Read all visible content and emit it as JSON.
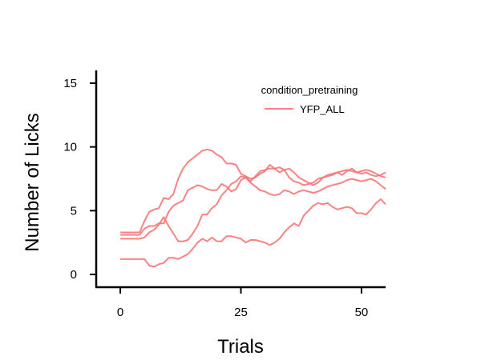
{
  "chart_data": {
    "type": "line",
    "xlabel": "Trials",
    "ylabel": "Number of Licks",
    "xlim": [
      -5,
      55
    ],
    "ylim": [
      -1,
      16
    ],
    "x_ticks": [
      0,
      25,
      50
    ],
    "x_tick_labels": [
      "0",
      "25",
      "50"
    ],
    "y_ticks": [
      0,
      5,
      10,
      15
    ],
    "y_tick_labels": [
      "0",
      "5",
      "10",
      "15"
    ],
    "grid": false,
    "legend": {
      "title": "condition_pretraining",
      "placement": "top-right",
      "entries": [
        "YFP_ALL"
      ]
    },
    "color": "#f87676",
    "series": [
      {
        "name": "YFP_ALL",
        "points": [
          [
            0,
            2.8
          ],
          [
            1,
            2.8
          ],
          [
            2,
            2.8
          ],
          [
            3,
            2.8
          ],
          [
            4,
            2.8
          ],
          [
            5,
            2.9
          ],
          [
            6,
            3.3
          ],
          [
            7,
            3.5
          ],
          [
            8,
            3.9
          ],
          [
            9,
            4.5
          ],
          [
            10,
            3.8
          ],
          [
            11,
            3.2
          ],
          [
            12,
            2.6
          ],
          [
            13,
            2.6
          ],
          [
            14,
            2.7
          ],
          [
            15,
            3.2
          ],
          [
            16,
            3.8
          ],
          [
            17,
            4.7
          ],
          [
            18,
            4.7
          ],
          [
            19,
            5.2
          ],
          [
            20,
            5.5
          ],
          [
            21,
            6.2
          ],
          [
            22,
            6.6
          ],
          [
            23,
            7.1
          ],
          [
            24,
            7.3
          ],
          [
            25,
            7.7
          ],
          [
            26,
            7.6
          ],
          [
            27,
            7.3
          ],
          [
            28,
            7.7
          ],
          [
            29,
            8.1
          ],
          [
            30,
            8.2
          ],
          [
            31,
            8.3
          ],
          [
            32,
            8.3
          ],
          [
            33,
            8.4
          ],
          [
            34,
            8.2
          ],
          [
            35,
            7.6
          ],
          [
            36,
            7.3
          ],
          [
            37,
            7.2
          ],
          [
            38,
            7.0
          ],
          [
            39,
            7.1
          ],
          [
            40,
            7.2
          ],
          [
            41,
            7.5
          ],
          [
            42,
            7.6
          ],
          [
            43,
            7.8
          ],
          [
            44,
            7.9
          ],
          [
            45,
            8.0
          ],
          [
            46,
            8.1
          ],
          [
            47,
            8.2
          ],
          [
            48,
            8.1
          ],
          [
            49,
            8.0
          ],
          [
            50,
            8.1
          ],
          [
            51,
            8.2
          ],
          [
            52,
            8.1
          ],
          [
            53,
            7.9
          ],
          [
            54,
            7.7
          ],
          [
            55,
            7.6
          ]
        ]
      },
      {
        "name": "",
        "points": [
          [
            0,
            3.3
          ],
          [
            1,
            3.3
          ],
          [
            2,
            3.3
          ],
          [
            3,
            3.3
          ],
          [
            4,
            3.3
          ],
          [
            5,
            4.2
          ],
          [
            6,
            4.9
          ],
          [
            7,
            5.1
          ],
          [
            8,
            5.2
          ],
          [
            9,
            6.0
          ],
          [
            10,
            5.9
          ],
          [
            11,
            6.3
          ],
          [
            12,
            7.5
          ],
          [
            13,
            8.3
          ],
          [
            14,
            8.8
          ],
          [
            15,
            9.1
          ],
          [
            16,
            9.4
          ],
          [
            17,
            9.7
          ],
          [
            18,
            9.8
          ],
          [
            19,
            9.7
          ],
          [
            20,
            9.4
          ],
          [
            21,
            9.2
          ],
          [
            22,
            8.7
          ],
          [
            23,
            8.7
          ],
          [
            24,
            8.6
          ],
          [
            25,
            7.9
          ],
          [
            26,
            7.7
          ],
          [
            27,
            7.5
          ],
          [
            28,
            7.6
          ],
          [
            29,
            7.9
          ],
          [
            30,
            8.1
          ],
          [
            31,
            8.6
          ],
          [
            32,
            8.3
          ],
          [
            33,
            8.0
          ],
          [
            34,
            8.2
          ],
          [
            35,
            8.3
          ],
          [
            36,
            8.0
          ],
          [
            37,
            7.6
          ],
          [
            38,
            7.4
          ],
          [
            39,
            7.2
          ],
          [
            40,
            7.0
          ],
          [
            41,
            7.2
          ],
          [
            42,
            7.6
          ],
          [
            43,
            7.7
          ],
          [
            44,
            7.8
          ],
          [
            45,
            8.0
          ],
          [
            46,
            7.8
          ],
          [
            47,
            8.1
          ],
          [
            48,
            8.3
          ],
          [
            49,
            8.0
          ],
          [
            50,
            7.9
          ],
          [
            51,
            8.0
          ],
          [
            52,
            7.8
          ],
          [
            53,
            7.7
          ],
          [
            54,
            7.8
          ],
          [
            55,
            8.0
          ]
        ]
      },
      {
        "name": "",
        "points": [
          [
            0,
            3.1
          ],
          [
            1,
            3.1
          ],
          [
            2,
            3.1
          ],
          [
            3,
            3.1
          ],
          [
            4,
            3.1
          ],
          [
            5,
            3.6
          ],
          [
            6,
            3.8
          ],
          [
            7,
            3.8
          ],
          [
            8,
            4.0
          ],
          [
            9,
            4.0
          ],
          [
            10,
            4.9
          ],
          [
            11,
            5.4
          ],
          [
            12,
            5.6
          ],
          [
            13,
            5.8
          ],
          [
            14,
            6.6
          ],
          [
            15,
            6.8
          ],
          [
            16,
            7.0
          ],
          [
            17,
            6.9
          ],
          [
            18,
            6.7
          ],
          [
            19,
            6.6
          ],
          [
            20,
            6.6
          ],
          [
            21,
            7.1
          ],
          [
            22,
            6.9
          ],
          [
            23,
            6.5
          ],
          [
            24,
            6.7
          ],
          [
            25,
            7.4
          ],
          [
            26,
            7.6
          ],
          [
            27,
            7.2
          ],
          [
            28,
            6.9
          ],
          [
            29,
            6.6
          ],
          [
            30,
            6.5
          ],
          [
            31,
            6.3
          ],
          [
            32,
            6.2
          ],
          [
            33,
            6.3
          ],
          [
            34,
            6.6
          ],
          [
            35,
            6.5
          ],
          [
            36,
            6.3
          ],
          [
            37,
            6.5
          ],
          [
            38,
            6.6
          ],
          [
            39,
            6.5
          ],
          [
            40,
            6.4
          ],
          [
            41,
            6.5
          ],
          [
            42,
            6.7
          ],
          [
            43,
            6.9
          ],
          [
            44,
            7.0
          ],
          [
            45,
            7.1
          ],
          [
            46,
            7.2
          ],
          [
            47,
            7.4
          ],
          [
            48,
            7.5
          ],
          [
            49,
            7.4
          ],
          [
            50,
            7.3
          ],
          [
            51,
            7.4
          ],
          [
            52,
            7.5
          ],
          [
            53,
            7.3
          ],
          [
            54,
            7.0
          ],
          [
            55,
            6.7
          ]
        ]
      },
      {
        "name": "",
        "points": [
          [
            0,
            1.2
          ],
          [
            1,
            1.2
          ],
          [
            2,
            1.2
          ],
          [
            3,
            1.2
          ],
          [
            4,
            1.2
          ],
          [
            5,
            1.2
          ],
          [
            6,
            0.7
          ],
          [
            7,
            0.6
          ],
          [
            8,
            0.8
          ],
          [
            9,
            0.9
          ],
          [
            10,
            1.3
          ],
          [
            11,
            1.3
          ],
          [
            12,
            1.2
          ],
          [
            13,
            1.4
          ],
          [
            14,
            1.6
          ],
          [
            15,
            2.0
          ],
          [
            16,
            2.5
          ],
          [
            17,
            2.8
          ],
          [
            18,
            2.6
          ],
          [
            19,
            2.9
          ],
          [
            20,
            2.6
          ],
          [
            21,
            2.6
          ],
          [
            22,
            3.0
          ],
          [
            23,
            3.0
          ],
          [
            24,
            2.9
          ],
          [
            25,
            2.8
          ],
          [
            26,
            2.5
          ],
          [
            27,
            2.7
          ],
          [
            28,
            2.7
          ],
          [
            29,
            2.6
          ],
          [
            30,
            2.5
          ],
          [
            31,
            2.3
          ],
          [
            32,
            2.5
          ],
          [
            33,
            2.8
          ],
          [
            34,
            3.3
          ],
          [
            35,
            3.7
          ],
          [
            36,
            4.0
          ],
          [
            37,
            3.8
          ],
          [
            38,
            4.6
          ],
          [
            39,
            5.0
          ],
          [
            40,
            5.4
          ],
          [
            41,
            5.6
          ],
          [
            42,
            5.5
          ],
          [
            43,
            5.6
          ],
          [
            44,
            5.3
          ],
          [
            45,
            5.1
          ],
          [
            46,
            5.2
          ],
          [
            47,
            5.3
          ],
          [
            48,
            5.2
          ],
          [
            49,
            4.8
          ],
          [
            50,
            4.8
          ],
          [
            51,
            4.7
          ],
          [
            52,
            5.1
          ],
          [
            53,
            5.6
          ],
          [
            54,
            5.9
          ],
          [
            55,
            5.5
          ]
        ]
      }
    ]
  }
}
